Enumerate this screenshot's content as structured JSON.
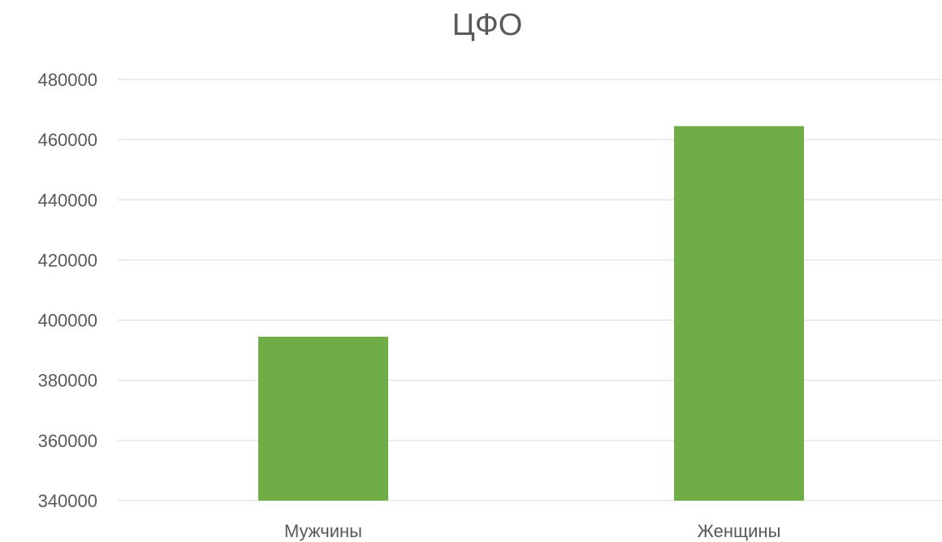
{
  "chart_data": {
    "type": "bar",
    "title": "ЦФО",
    "categories": [
      "Мужчины",
      "Женщины"
    ],
    "values": [
      394500,
      464500
    ],
    "ylim": [
      340000,
      480000
    ],
    "yticks": [
      340000,
      360000,
      380000,
      400000,
      420000,
      440000,
      460000,
      480000
    ],
    "grid": true,
    "legend": "none",
    "bar_color": "#70ad47",
    "grid_color": "#d9d9d9",
    "text_color": "#595959"
  }
}
